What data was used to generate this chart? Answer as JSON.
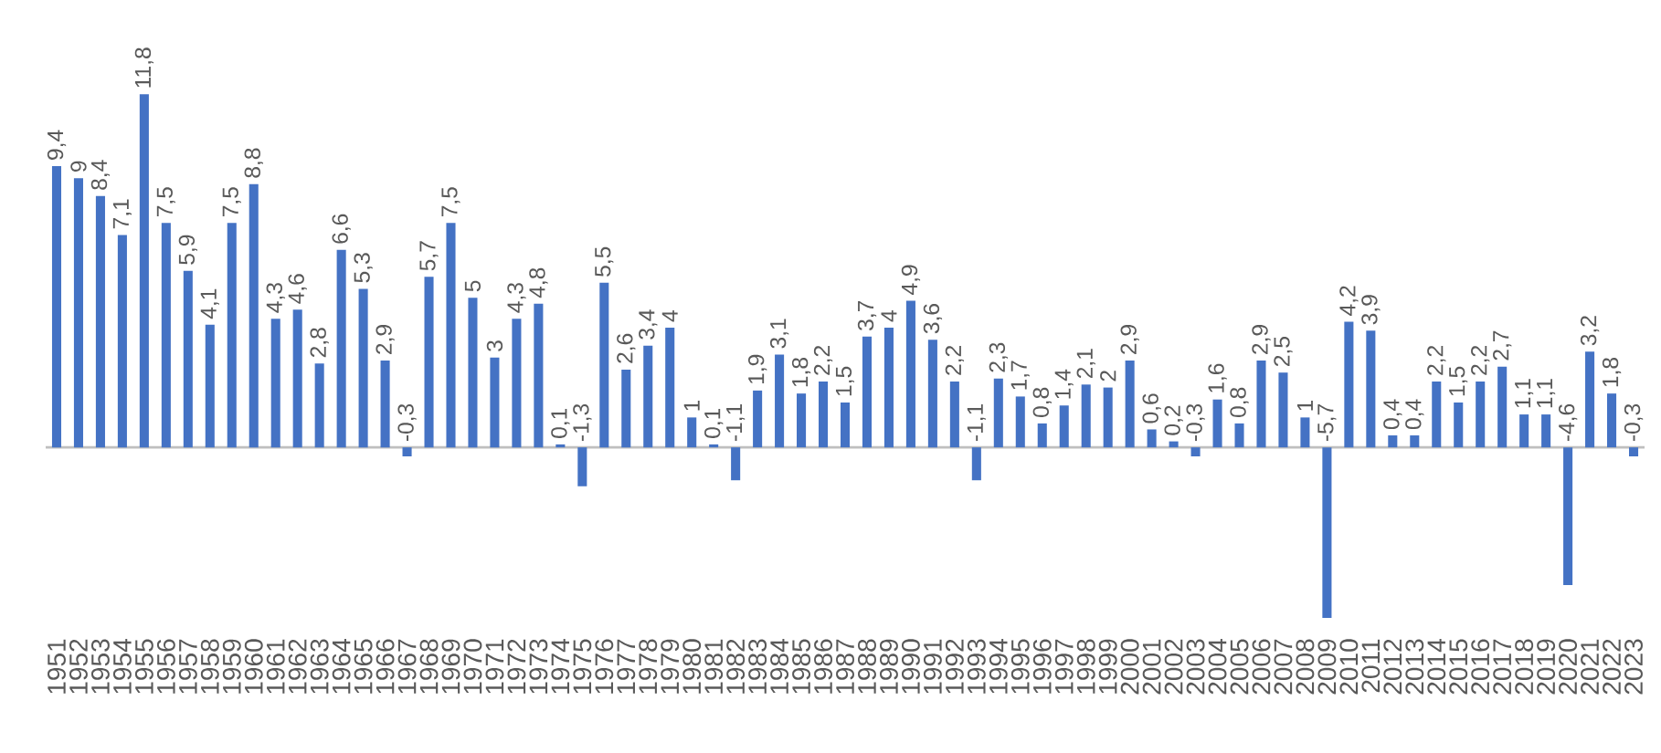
{
  "chart_data": {
    "type": "bar",
    "color": "#4472c4",
    "categories": [
      "1951",
      "1952",
      "1953",
      "1954",
      "1955",
      "1956",
      "1957",
      "1958",
      "1959",
      "1960",
      "1961",
      "1962",
      "1963",
      "1964",
      "1965",
      "1966",
      "1967",
      "1968",
      "1969",
      "1970",
      "1971",
      "1972",
      "1973",
      "1974",
      "1975",
      "1976",
      "1977",
      "1978",
      "1979",
      "1980",
      "1981",
      "1982",
      "1983",
      "1984",
      "1985",
      "1986",
      "1987",
      "1988",
      "1989",
      "1990",
      "1991",
      "1992",
      "1993",
      "1994",
      "1995",
      "1996",
      "1997",
      "1998",
      "1999",
      "2000",
      "2001",
      "2002",
      "2003",
      "2004",
      "2005",
      "2006",
      "2007",
      "2008",
      "2009",
      "2010",
      "2011",
      "2012",
      "2013",
      "2014",
      "2015",
      "2016",
      "2017",
      "2018",
      "2019",
      "2020",
      "2021",
      "2022",
      "2023"
    ],
    "values": [
      9.4,
      9,
      8.4,
      7.1,
      11.8,
      7.5,
      5.9,
      4.1,
      7.5,
      8.8,
      4.3,
      4.6,
      2.8,
      6.6,
      5.3,
      2.9,
      -0.3,
      5.7,
      7.5,
      5,
      3,
      4.3,
      4.8,
      0.1,
      -1.3,
      5.5,
      2.6,
      3.4,
      4,
      1,
      0.1,
      -1.1,
      1.9,
      3.1,
      1.8,
      2.2,
      1.5,
      3.7,
      4,
      4.9,
      3.6,
      2.2,
      -1.1,
      2.3,
      1.7,
      0.8,
      1.4,
      2.1,
      2,
      2.9,
      0.6,
      0.2,
      -0.3,
      1.6,
      0.8,
      2.9,
      2.5,
      1,
      -5.7,
      4.2,
      3.9,
      0.4,
      0.4,
      2.2,
      1.5,
      2.2,
      2.7,
      1.1,
      1.1,
      -4.6,
      3.2,
      1.8,
      -0.3
    ],
    "value_labels": [
      "9,4",
      "9",
      "8,4",
      "7,1",
      "11,8",
      "7,5",
      "5,9",
      "4,1",
      "7,5",
      "8,8",
      "4,3",
      "4,6",
      "2,8",
      "6,6",
      "5,3",
      "2,9",
      "-0,3",
      "5,7",
      "7,5",
      "5",
      "3",
      "4,3",
      "4,8",
      "0,1",
      "-1,3",
      "5,5",
      "2,6",
      "3,4",
      "4",
      "1",
      "0,1",
      "-1,1",
      "1,9",
      "3,1",
      "1,8",
      "2,2",
      "1,5",
      "3,7",
      "4",
      "4,9",
      "3,6",
      "2,2",
      "-1,1",
      "2,3",
      "1,7",
      "0,8",
      "1,4",
      "2,1",
      "2",
      "2,9",
      "0,6",
      "0,2",
      "-0,3",
      "1,6",
      "0,8",
      "2,9",
      "2,5",
      "1",
      "-5,7",
      "4,2",
      "3,9",
      "0,4",
      "0,4",
      "2,2",
      "1,5",
      "2,2",
      "2,7",
      "1,1",
      "1,1",
      "-4,6",
      "3,2",
      "1,8",
      "-0,3"
    ]
  }
}
